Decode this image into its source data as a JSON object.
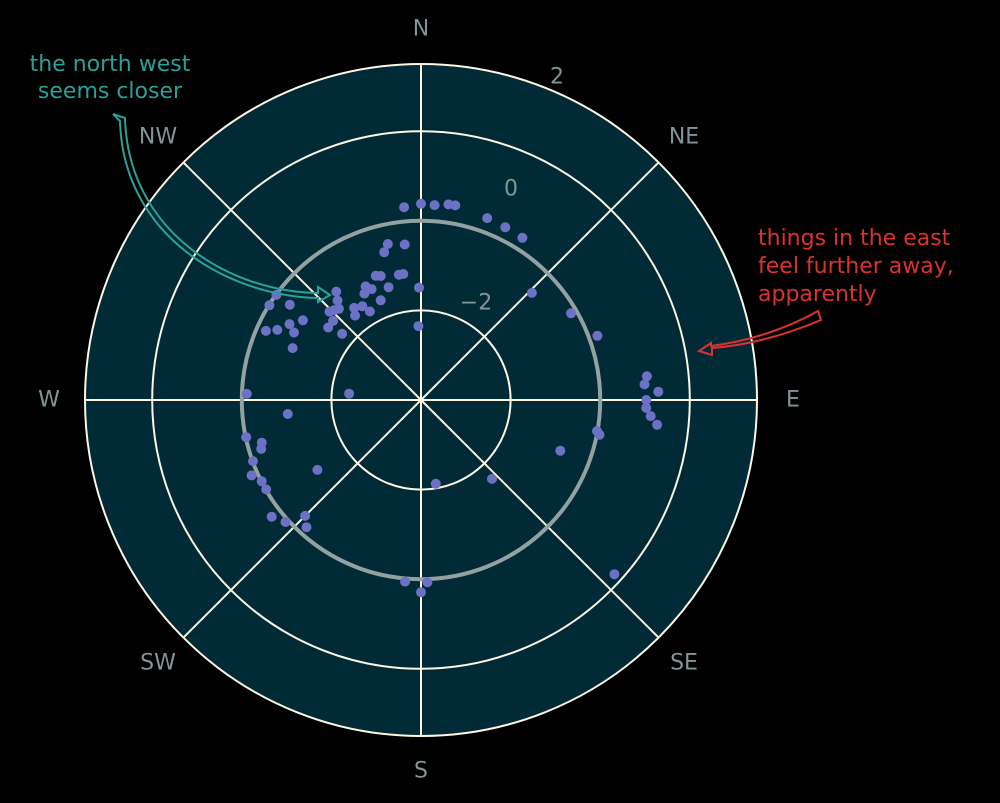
{
  "chart_data": {
    "type": "scatter",
    "projection": "polar",
    "theta_direction": "clockwise",
    "theta_zero": "N",
    "compass_labels": [
      "N",
      "NE",
      "E",
      "SE",
      "S",
      "SW",
      "W",
      "NW"
    ],
    "radial_ticks": [
      "−2",
      "0",
      "2"
    ],
    "radial_tick_values": [
      -2,
      0,
      2
    ],
    "rlim": [
      -4,
      3.5
    ],
    "grid": true,
    "colors": {
      "background": "#000000",
      "axes_face": "#002b36",
      "grid": "#fdf6e3",
      "zero_circle": "#93a1a1",
      "labels": "#839496",
      "points": "#6c71c4",
      "annotation_nw": "#2aa198",
      "annotation_e": "#dc322f"
    },
    "points": [
      [
        0,
        0.38
      ],
      [
        4,
        0.36
      ],
      [
        8,
        0.41
      ],
      [
        10,
        0.41
      ],
      [
        20,
        0.32
      ],
      [
        26,
        0.29
      ],
      [
        32,
        0.27
      ],
      [
        46,
        -0.56
      ],
      [
        60,
        -0.13
      ],
      [
        70,
        0.19
      ],
      [
        84,
        1.07
      ],
      [
        86,
        1.0
      ],
      [
        88,
        1.3
      ],
      [
        90,
        1.03
      ],
      [
        92,
        1.03
      ],
      [
        94,
        1.14
      ],
      [
        96,
        1.3
      ],
      [
        100,
        -0.01
      ],
      [
        101,
        0.06
      ],
      [
        110,
        -0.69
      ],
      [
        132,
        1.81
      ],
      [
        138,
        -1.63
      ],
      [
        170,
        -2.1
      ],
      [
        178,
        0.07
      ],
      [
        180,
        0.29
      ],
      [
        185,
        0.07
      ],
      [
        222,
        -0.18
      ],
      [
        225,
        -0.34
      ],
      [
        228,
        0.07
      ],
      [
        232,
        0.23
      ],
      [
        236,
        -1.21
      ],
      [
        240,
        -0.01
      ],
      [
        243,
        -0.01
      ],
      [
        246,
        0.14
      ],
      [
        250,
        -0.01
      ],
      [
        253,
        -0.27
      ],
      [
        255,
        -0.32
      ],
      [
        258,
        -0.01
      ],
      [
        264,
        -1.01
      ],
      [
        272,
        -0.11
      ],
      [
        275,
        -2.39
      ],
      [
        292,
        -0.91
      ],
      [
        294,
        -0.21
      ],
      [
        296,
        -0.43
      ],
      [
        298,
        -0.79
      ],
      [
        300,
        -0.61
      ],
      [
        302,
        -0.01
      ],
      [
        304,
        -0.82
      ],
      [
        306,
        -0.01
      ],
      [
        306,
        -0.38
      ],
      [
        308,
        -1.37
      ],
      [
        310,
        -1.7
      ],
      [
        312,
        -1.36
      ],
      [
        314,
        -1.16
      ],
      [
        316,
        -1.21
      ],
      [
        318,
        -1.26
      ],
      [
        320,
        -1.1
      ],
      [
        322,
        -1.61
      ],
      [
        322,
        -0.93
      ],
      [
        324,
        -1.46
      ],
      [
        328,
        -1.53
      ],
      [
        330,
        -1.72
      ],
      [
        332,
        -1.31
      ],
      [
        334,
        -1.18
      ],
      [
        336,
        -1.29
      ],
      [
        338,
        -1.6
      ],
      [
        340,
        -1.05
      ],
      [
        342,
        -1.09
      ],
      [
        344,
        -1.38
      ],
      [
        346,
        -0.6
      ],
      [
        348,
        -0.44
      ],
      [
        350,
        -1.16
      ],
      [
        352,
        -1.16
      ],
      [
        354,
        -0.51
      ],
      [
        355,
        0.32
      ],
      [
        358,
        -2.35
      ],
      [
        359,
        -1.49
      ]
    ]
  },
  "annotations": {
    "nw": {
      "lines": [
        "the north west",
        "seems closer"
      ]
    },
    "e": {
      "lines": [
        "things in the east",
        "feel further away,",
        "apparently"
      ]
    }
  }
}
